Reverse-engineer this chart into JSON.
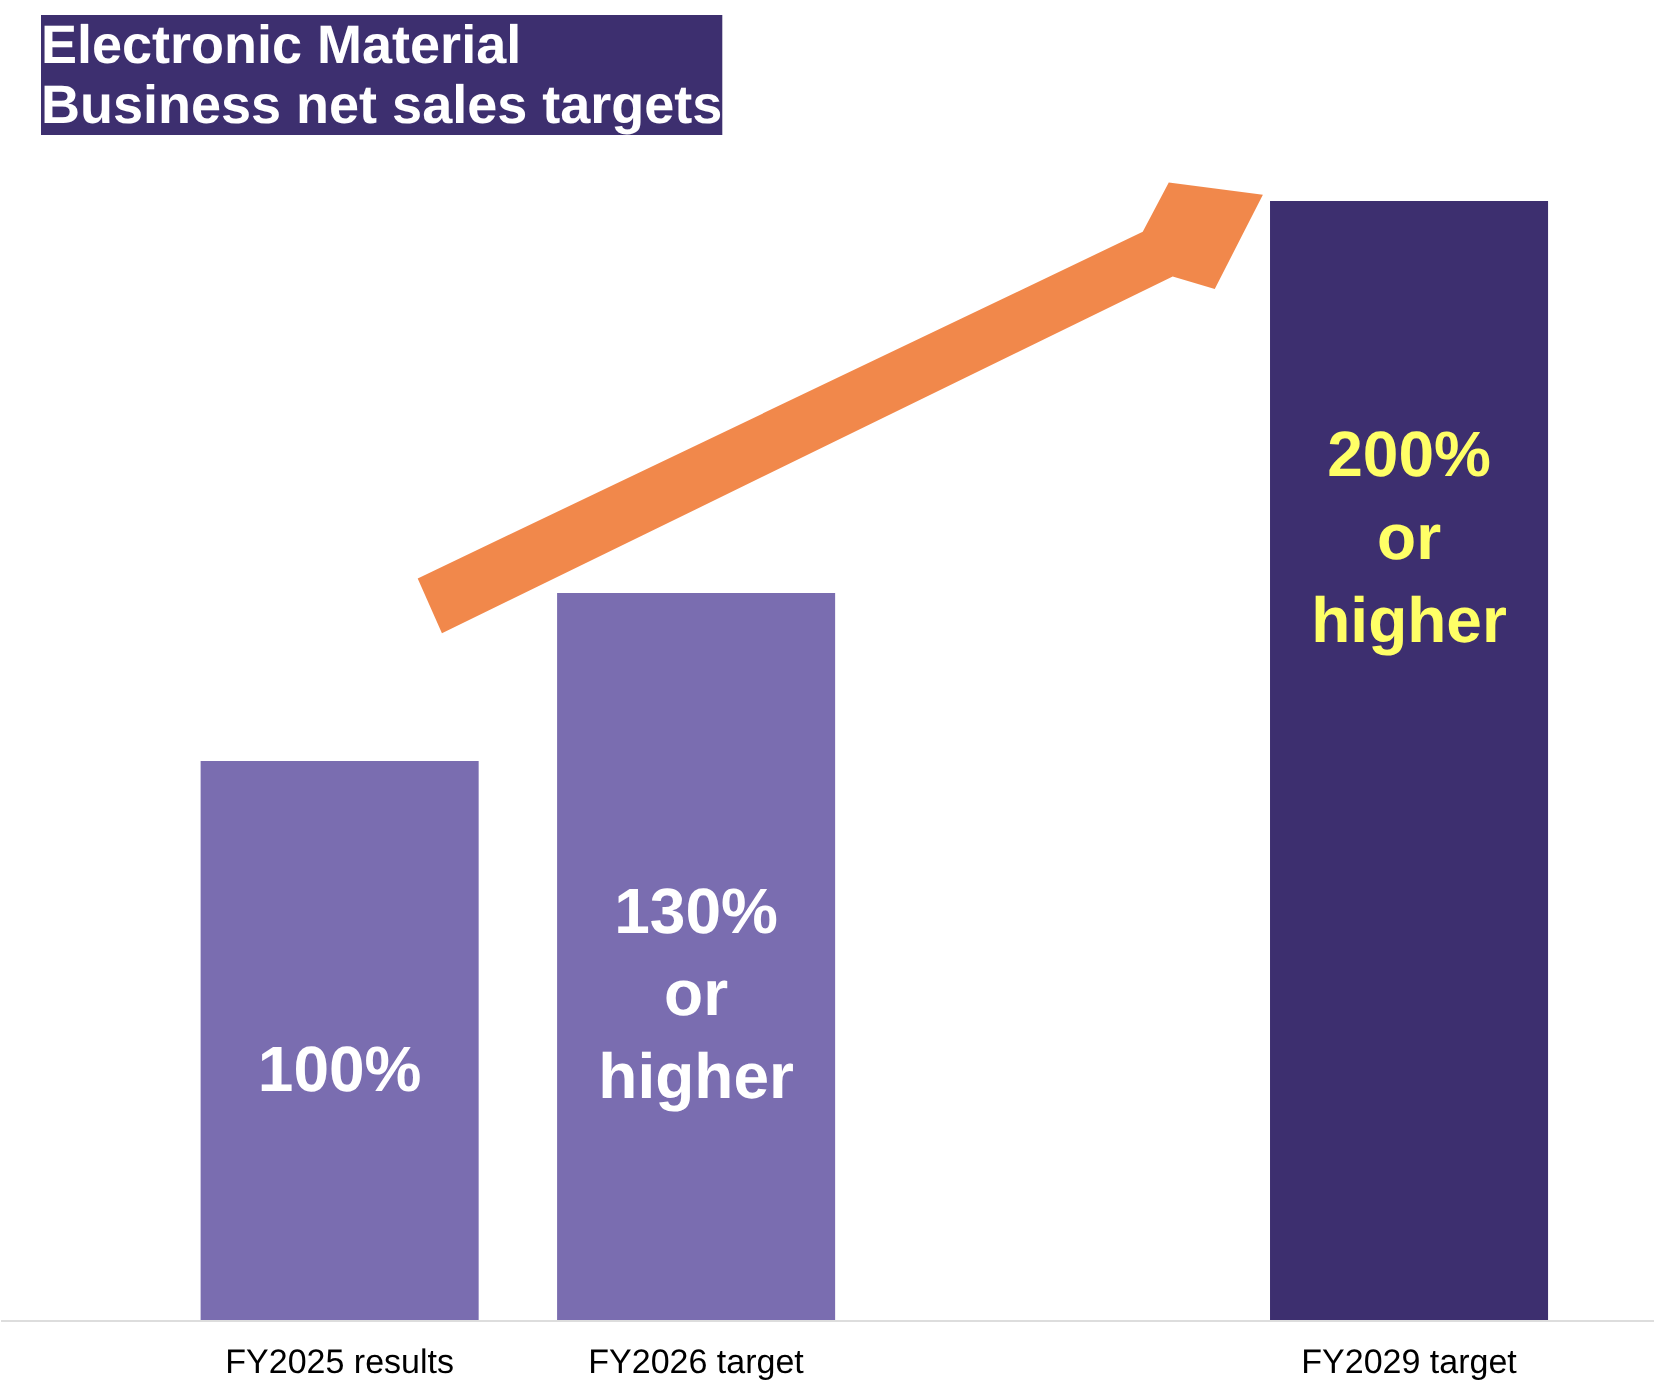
{
  "chart_data": {
    "type": "bar",
    "title": "Electronic Material\nBusiness net sales targets",
    "categories": [
      "FY2025 results",
      "FY2026 target",
      null,
      "FY2029 target"
    ],
    "values": [
      100,
      130,
      null,
      200
    ],
    "colors": [
      "#7a6db0",
      "#7a6db0",
      "#ffffff",
      "#3d2f6f"
    ],
    "value_labels": [
      "100%",
      "130%\nor\nhigher",
      null,
      "200%\nor\nhigher"
    ],
    "grid": false
  }
}
